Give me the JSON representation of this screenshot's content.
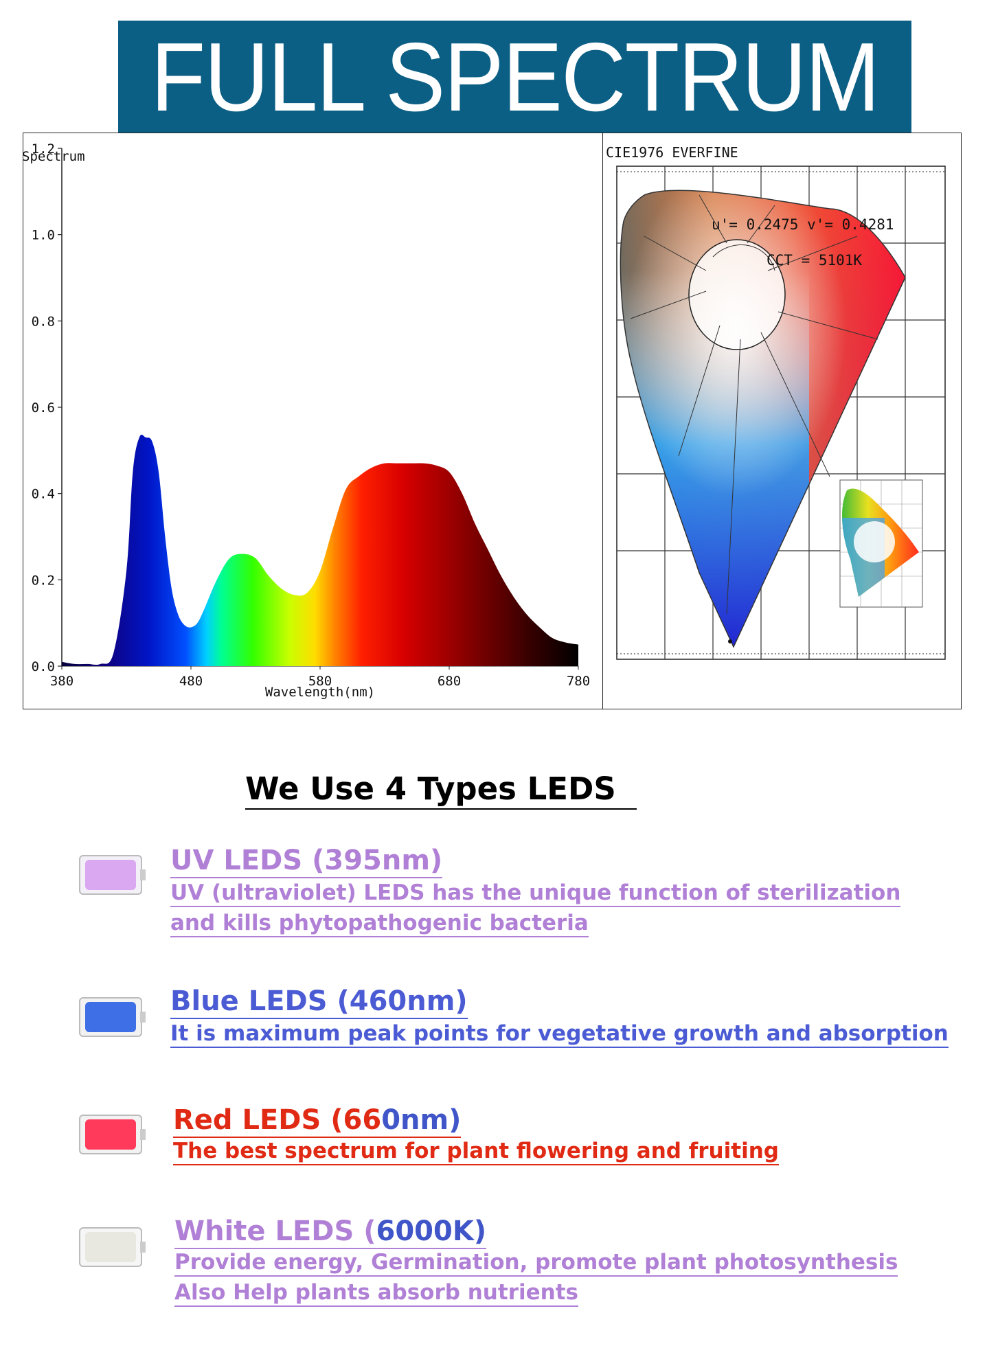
{
  "header": {
    "title": "FULL SPECTRUM"
  },
  "chart_data": {
    "type": "area",
    "ylabel": "Spectrum",
    "xlabel": "Wavelength(nm)",
    "xlim": [
      380,
      780
    ],
    "ylim": [
      0,
      1.2
    ],
    "x_ticks": [
      "380",
      "480",
      "580",
      "680",
      "780"
    ],
    "y_ticks": [
      "0.0",
      "0.2",
      "0.4",
      "0.6",
      "0.8",
      "1.0",
      "1.2"
    ],
    "x": [
      380,
      390,
      400,
      410,
      420,
      430,
      435,
      440,
      445,
      450,
      455,
      460,
      465,
      470,
      475,
      480,
      485,
      490,
      500,
      510,
      520,
      530,
      540,
      550,
      560,
      570,
      580,
      590,
      600,
      610,
      620,
      630,
      640,
      650,
      660,
      670,
      680,
      690,
      700,
      710,
      720,
      730,
      740,
      750,
      760,
      770,
      780
    ],
    "values": [
      0.01,
      0.005,
      0.005,
      0.005,
      0.03,
      0.22,
      0.45,
      0.53,
      0.53,
      0.52,
      0.45,
      0.3,
      0.18,
      0.12,
      0.095,
      0.09,
      0.1,
      0.13,
      0.2,
      0.25,
      0.26,
      0.25,
      0.21,
      0.18,
      0.165,
      0.17,
      0.22,
      0.32,
      0.41,
      0.44,
      0.46,
      0.47,
      0.47,
      0.47,
      0.47,
      0.465,
      0.45,
      0.4,
      0.33,
      0.27,
      0.21,
      0.16,
      0.12,
      0.09,
      0.065,
      0.055,
      0.05
    ],
    "grid": false
  },
  "cie": {
    "header": "CIE1976 EVERFINE",
    "uv_label": "u'= 0.2475 v'= 0.4281",
    "cct_label": "CCT = 5101K"
  },
  "leds": {
    "heading": "We Use 4 Types LEDS",
    "items": [
      {
        "title": "UV LEDS (395nm)",
        "lines": [
          "UV (ultraviolet)  LEDS has the unique function of sterilization",
          "and kills phytopathogenic bacteria"
        ],
        "color": "#b07fd6",
        "chip_color": "#d9a8f0"
      },
      {
        "title": "Blue LEDS (460nm)",
        "lines": [
          "It is maximum peak points  for vegetative growth and absorption"
        ],
        "color": "#4b5bd4",
        "chip_color": "#3f6fe6"
      },
      {
        "title_parts": [
          "Red LEDS (66",
          "0nm)"
        ],
        "lines": [
          "The best spectrum for  plant flowering and fruiting"
        ],
        "color": "#e02a14",
        "accent": "#3f55c8",
        "chip_color": "#ff3a5a"
      },
      {
        "title_parts": [
          "White LEDS (",
          "6000K)"
        ],
        "lines": [
          "Provide energy, Germination, promote plant photosynthesis",
          "Also Help plants absorb nutrients"
        ],
        "color": "#b07fd6",
        "accent": "#3f55c8",
        "chip_color": "#e8e8e0"
      }
    ]
  },
  "colors": {
    "banner": "#0c5f84"
  }
}
